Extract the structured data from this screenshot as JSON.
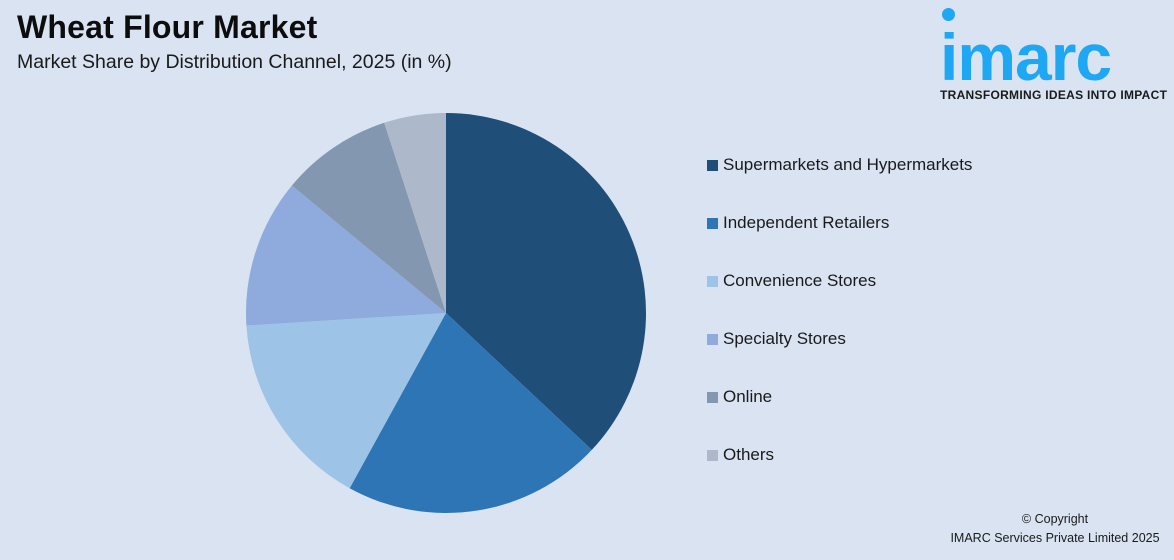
{
  "header": {
    "title": "Wheat Flour Market",
    "subtitle": "Market Share by Distribution Channel, 2025 (in %)"
  },
  "logo": {
    "word": "imarc",
    "tagline": "TRANSFORMING IDEAS INTO IMPACT",
    "color": "#1ea7f2"
  },
  "footer": {
    "line1": "© Copyright",
    "line2": "IMARC Services Private Limited 2025"
  },
  "chart_data": {
    "type": "pie",
    "title": "Wheat Flour Market",
    "subtitle": "Market Share by Distribution Channel, 2025 (in %)",
    "categories": [
      "Supermarkets and Hypermarkets",
      "Independent Retailers",
      "Convenience Stores",
      "Specialty Stores",
      "Online",
      "Others"
    ],
    "values": [
      37,
      21,
      16,
      12,
      9,
      5
    ],
    "colors": [
      "#1f4e79",
      "#2e75b6",
      "#9dc3e6",
      "#8faadc",
      "#8497b0",
      "#adb9ca"
    ],
    "start_angle": "12 o'clock, clockwise",
    "legend_position": "right",
    "data_labels": false
  }
}
